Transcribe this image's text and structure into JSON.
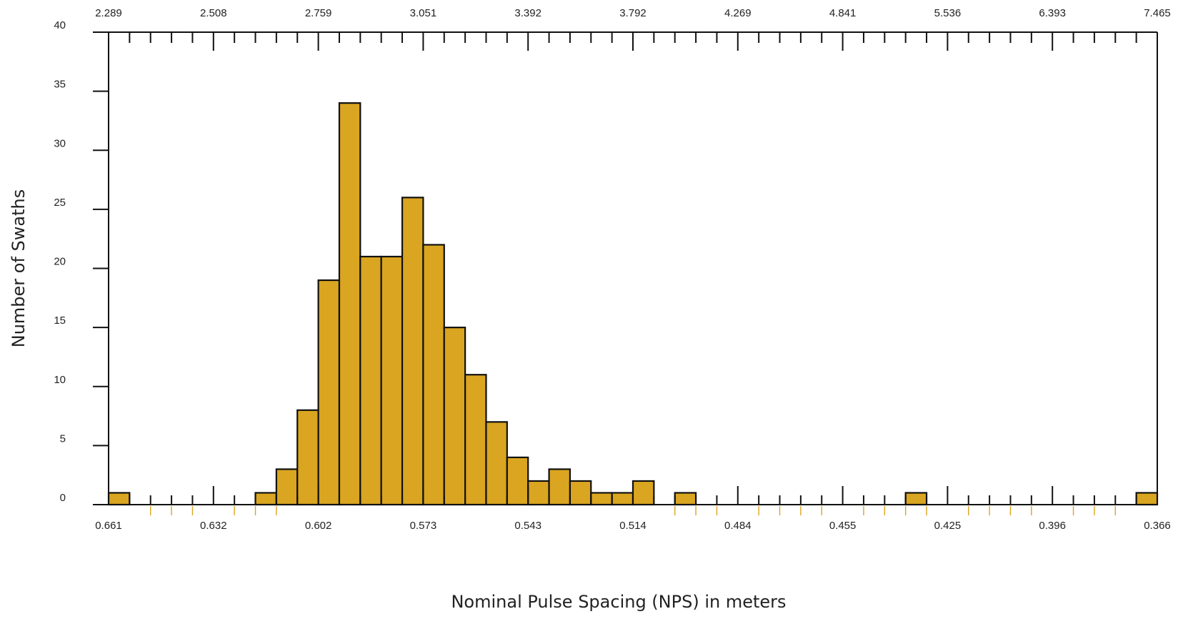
{
  "chart_data": {
    "type": "bar",
    "xlabel": "Nominal Pulse Spacing (NPS) in meters",
    "ylabel": "Number of Swaths",
    "ylim": [
      0,
      40
    ],
    "y_ticks": [
      0,
      5,
      10,
      15,
      20,
      25,
      30,
      35,
      40
    ],
    "bottom_axis_tick_labels": [
      "0.661",
      "0.632",
      "0.602",
      "0.573",
      "0.543",
      "0.514",
      "0.484",
      "0.455",
      "0.425",
      "0.396",
      "0.366"
    ],
    "top_axis_tick_labels": [
      "2.289",
      "2.508",
      "2.759",
      "3.051",
      "3.392",
      "3.792",
      "4.269",
      "4.841",
      "5.536",
      "6.393",
      "7.465"
    ],
    "bin_count": 50,
    "bin_range": [
      0.661,
      0.366
    ],
    "values": [
      1,
      0,
      0,
      0,
      0,
      0,
      0,
      1,
      3,
      8,
      19,
      34,
      21,
      21,
      26,
      22,
      15,
      11,
      7,
      4,
      2,
      3,
      2,
      1,
      1,
      2,
      0,
      1,
      0,
      0,
      0,
      0,
      0,
      0,
      0,
      0,
      0,
      0,
      1,
      0,
      0,
      0,
      0,
      0,
      0,
      0,
      0,
      0,
      0,
      1
    ],
    "bar_color": "#DAA520",
    "highlight_minor_ticks": [
      2,
      3,
      4,
      5,
      6,
      7,
      8,
      27,
      28,
      29,
      30,
      31,
      32,
      33,
      34,
      35,
      36,
      37,
      38,
      39,
      40,
      41,
      42,
      43,
      44,
      45,
      46,
      47,
      48
    ],
    "highlight_tick_color": "#DAA520",
    "grid": false,
    "legend": "none"
  }
}
